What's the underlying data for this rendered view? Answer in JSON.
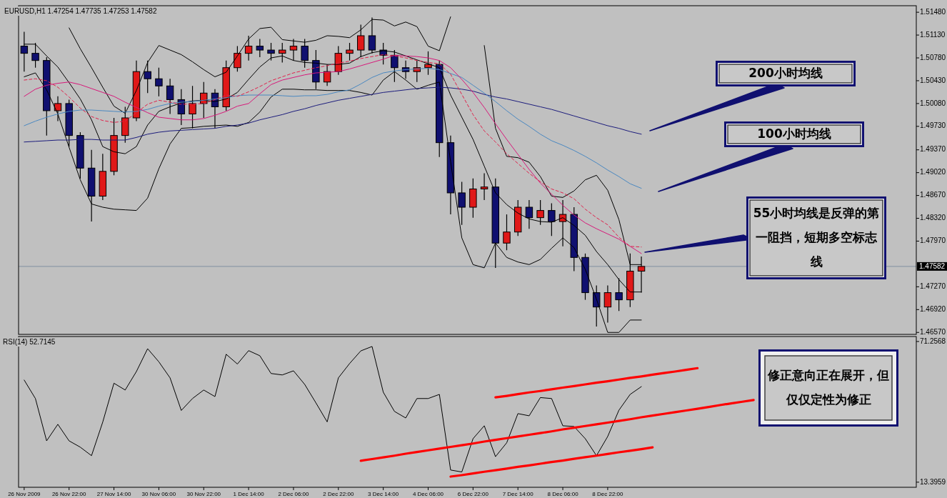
{
  "chart_data": [
    {
      "type": "candlestick",
      "title": "EURUSD,H1  1.47254 1.47735 1.47253 1.47582",
      "categories": [
        null,
        null,
        null,
        null,
        null,
        null,
        null,
        null,
        null,
        null,
        null,
        null,
        null,
        null,
        null,
        null,
        null,
        null,
        null,
        null,
        null,
        null,
        null,
        null,
        null,
        null,
        null,
        null,
        null,
        null,
        null,
        null,
        null,
        null,
        null,
        null,
        null,
        null,
        null,
        null,
        null,
        null,
        null,
        null,
        null,
        null,
        null,
        null,
        null,
        null,
        null,
        null,
        null,
        null,
        null,
        null,
        null,
        null,
        null,
        null,
        null,
        null,
        null,
        null,
        null,
        null,
        null,
        null,
        null,
        null,
        null,
        null,
        null,
        null,
        null,
        null,
        null,
        null,
        null,
        null
      ],
      "ylim": [
        1.4654,
        1.5158
      ],
      "yticks": [
        {
          "value": 1.5148,
          "label": "1.51480"
        },
        {
          "value": 1.5113,
          "label": "1.51130"
        },
        {
          "value": 1.5078,
          "label": "1.50780"
        },
        {
          "value": 1.5043,
          "label": "1.50430"
        },
        {
          "value": 1.5008,
          "label": "1.50080"
        },
        {
          "value": 1.4973,
          "label": "1.49730"
        },
        {
          "value": 1.4937,
          "label": "1.49370"
        },
        {
          "value": 1.4902,
          "label": "1.49020"
        },
        {
          "value": 1.4867,
          "label": "1.48670"
        },
        {
          "value": 1.4832,
          "label": "1.48320"
        },
        {
          "value": 1.4797,
          "label": "1.47970"
        },
        {
          "value": 1.4727,
          "label": "1.47270"
        },
        {
          "value": 1.4692,
          "label": "1.46920"
        },
        {
          "value": 1.4657,
          "label": "1.46570"
        }
      ],
      "ohlc": [
        [
          1.5096,
          1.5118,
          1.5057,
          1.5085
        ],
        [
          1.5085,
          1.5101,
          1.5063,
          1.5074
        ],
        [
          1.5074,
          1.5079,
          1.4959,
          1.4997
        ],
        [
          1.4997,
          1.5019,
          1.4981,
          1.5008
        ],
        [
          1.5008,
          1.5014,
          1.4942,
          1.4959
        ],
        [
          1.4959,
          1.4964,
          1.4893,
          1.4909
        ],
        [
          1.4909,
          1.4937,
          1.4827,
          1.4866
        ],
        [
          1.4866,
          1.4931,
          1.486,
          1.4904
        ],
        [
          1.4904,
          1.4986,
          1.4898,
          1.4959
        ],
        [
          1.4959,
          1.5003,
          1.4948,
          1.4986
        ],
        [
          1.4986,
          1.5074,
          1.4981,
          1.5057
        ],
        [
          1.5057,
          1.5074,
          1.5024,
          1.5046
        ],
        [
          1.5046,
          1.5063,
          1.5019,
          1.5035
        ],
        [
          1.5035,
          1.5046,
          1.4992,
          1.5014
        ],
        [
          1.5014,
          1.503,
          1.4975,
          1.4992
        ],
        [
          1.4992,
          1.5035,
          1.497,
          1.5008
        ],
        [
          1.5008,
          1.5041,
          1.4986,
          1.5024
        ],
        [
          1.5024,
          1.503,
          1.497,
          1.5003
        ],
        [
          1.5003,
          1.5074,
          1.4997,
          1.5063
        ],
        [
          1.5063,
          1.5096,
          1.5057,
          1.5085
        ],
        [
          1.5085,
          1.5112,
          1.5074,
          1.5096
        ],
        [
          1.5096,
          1.5107,
          1.5079,
          1.509
        ],
        [
          1.509,
          1.5101,
          1.5074,
          1.5085
        ],
        [
          1.5085,
          1.5101,
          1.5071,
          1.509
        ],
        [
          1.509,
          1.5107,
          1.5074,
          1.5096
        ],
        [
          1.5096,
          1.5107,
          1.5063,
          1.5074
        ],
        [
          1.5074,
          1.509,
          1.503,
          1.5041
        ],
        [
          1.5041,
          1.5068,
          1.5035,
          1.5057
        ],
        [
          1.5057,
          1.5096,
          1.5052,
          1.5085
        ],
        [
          1.5085,
          1.5101,
          1.5074,
          1.509
        ],
        [
          1.509,
          1.5129,
          1.5079,
          1.5112
        ],
        [
          1.5112,
          1.514,
          1.5085,
          1.509
        ],
        [
          1.509,
          1.5101,
          1.5068,
          1.5082
        ],
        [
          1.5082,
          1.509,
          1.5041,
          1.5063
        ],
        [
          1.5063,
          1.5074,
          1.5046,
          1.5057
        ],
        [
          1.5057,
          1.5074,
          1.5041,
          1.5063
        ],
        [
          1.5063,
          1.5088,
          1.5052,
          1.5068
        ],
        [
          1.5068,
          1.5074,
          1.4926,
          1.4948
        ],
        [
          1.4948,
          1.4959,
          1.4838,
          1.4871
        ],
        [
          1.4871,
          1.4888,
          1.4822,
          1.4849
        ],
        [
          1.4849,
          1.4893,
          1.4833,
          1.4877
        ],
        [
          1.4877,
          1.4901,
          1.486,
          1.488
        ],
        [
          1.488,
          1.4893,
          1.4756,
          1.4794
        ],
        [
          1.4794,
          1.4838,
          1.4783,
          1.4811
        ],
        [
          1.4811,
          1.486,
          1.4805,
          1.4849
        ],
        [
          1.4849,
          1.486,
          1.4816,
          1.4833
        ],
        [
          1.4833,
          1.486,
          1.4822,
          1.4844
        ],
        [
          1.4844,
          1.4855,
          1.4805,
          1.4827
        ],
        [
          1.4827,
          1.486,
          1.4789,
          1.4838
        ],
        [
          1.4838,
          1.4849,
          1.4751,
          1.4772
        ],
        [
          1.4772,
          1.4778,
          1.4707,
          1.4718
        ],
        [
          1.4718,
          1.4729,
          1.4666,
          1.4696
        ],
        [
          1.4696,
          1.4729,
          1.4672,
          1.4718
        ],
        [
          1.4718,
          1.474,
          1.469,
          1.4707
        ],
        [
          1.4707,
          1.4778,
          1.4696,
          1.4751
        ],
        [
          1.4751,
          1.47735,
          1.4718,
          1.47582
        ],
        null,
        null,
        null,
        null,
        null,
        null,
        null,
        null,
        null,
        null,
        null,
        null,
        null,
        null,
        null,
        null,
        null,
        null,
        null,
        null,
        null,
        null,
        null,
        null
      ],
      "series": [
        {
          "type": "line",
          "color": "#000000",
          "values": [
            null,
            null,
            null,
            null,
            1.5124,
            1.5092,
            1.5063,
            1.5033,
            1.5004,
            1.4993,
            1.5028,
            1.5071,
            1.5097,
            1.509,
            1.5083,
            1.5072,
            1.506,
            1.5049,
            1.5056,
            1.5081,
            1.5107,
            1.5123,
            1.5125,
            1.5106,
            1.5104,
            1.5102,
            1.5105,
            1.5112,
            1.5111,
            1.5109,
            1.5121,
            1.5137,
            1.5136,
            1.5127,
            1.5133,
            1.5126,
            1.5096,
            1.5089,
            1.5141,
            null,
            null,
            1.5097,
            1.497,
            1.4927,
            1.4925,
            1.4918,
            1.4896,
            1.4866,
            1.4864,
            1.4874,
            1.4891,
            1.4898,
            1.4875,
            1.483,
            1.4761,
            1.4761,
            null,
            null,
            null,
            null,
            null,
            null,
            null,
            null,
            null,
            null,
            null,
            null,
            null,
            null,
            null,
            null,
            null,
            null,
            null,
            null,
            null,
            null,
            null,
            null
          ]
        },
        {
          "type": "line",
          "color": "#000000",
          "values": [
            1.5099,
            1.5099,
            1.5081,
            1.5064,
            1.504,
            1.5015,
            1.4983,
            1.4942,
            1.4934,
            1.4931,
            1.4942,
            1.4975,
            1.4996,
            1.5003,
            1.5009,
            1.5012,
            1.5013,
            1.5011,
            1.5015,
            1.5025,
            1.5045,
            1.5064,
            1.5078,
            1.5081,
            1.5074,
            1.5071,
            1.507,
            1.5068,
            1.5068,
            1.507,
            1.508,
            1.5086,
            1.5089,
            1.5087,
            1.5081,
            1.5075,
            1.5069,
            1.5063,
            1.5021,
            1.4987,
            1.4953,
            1.4912,
            1.4871,
            1.4853,
            1.484,
            1.4831,
            1.4827,
            1.4826,
            1.4833,
            1.4821,
            1.4806,
            1.4781,
            1.4761,
            1.4738,
            1.4719,
            1.4719,
            null,
            null,
            null,
            null,
            null,
            null,
            null,
            null,
            null,
            null,
            null,
            null,
            null,
            null,
            null,
            null,
            null,
            null,
            null,
            null,
            null,
            null,
            null,
            null
          ]
        },
        {
          "type": "line",
          "color": "#000000",
          "values": [
            1.5049,
            1.5055,
            1.5029,
            1.4992,
            1.4941,
            1.4891,
            1.4854,
            1.4849,
            1.4846,
            1.4845,
            1.4844,
            1.4863,
            1.4908,
            1.4946,
            1.497,
            1.4971,
            1.4973,
            1.4974,
            1.4975,
            1.4973,
            1.4979,
            1.4995,
            1.5018,
            1.503,
            1.503,
            1.5029,
            1.5029,
            1.5028,
            1.5028,
            1.5028,
            1.5025,
            1.5021,
            1.5044,
            1.5057,
            1.5044,
            1.503,
            1.5036,
            1.5041,
            1.4919,
            1.4802,
            1.4761,
            1.4756,
            1.4794,
            1.4772,
            1.4765,
            1.4761,
            1.4769,
            1.4786,
            1.4802,
            1.4787,
            1.4754,
            1.4708,
            1.4657,
            1.4657,
            1.4676,
            1.4676,
            null,
            null,
            null,
            null,
            null,
            null,
            null,
            null,
            null,
            null,
            null,
            null,
            null,
            null,
            null,
            null,
            null,
            null,
            null,
            null,
            null,
            null,
            null,
            null
          ]
        },
        {
          "type": "line",
          "color": "#1c1c7c",
          "values": [
            1.4949,
            1.495,
            1.4951,
            1.4952,
            1.4952,
            1.4953,
            1.4953,
            1.4952,
            1.4952,
            1.4952,
            1.4956,
            1.4961,
            1.4964,
            1.4966,
            1.4967,
            1.4968,
            1.4969,
            1.497,
            1.4973,
            1.4975,
            1.4978,
            1.4983,
            1.4987,
            1.4991,
            1.4996,
            1.5,
            1.5005,
            1.5009,
            1.5013,
            1.5016,
            1.5019,
            1.5022,
            1.5025,
            1.5027,
            1.5029,
            1.5031,
            1.5032,
            1.5033,
            1.5032,
            1.503,
            1.5027,
            1.5022,
            1.5018,
            1.5015,
            1.5011,
            1.5007,
            1.5003,
            1.4999,
            1.4994,
            1.4989,
            1.4984,
            1.4979,
            1.4974,
            1.497,
            1.4965,
            1.4961,
            null,
            null,
            null,
            null,
            null,
            null,
            null,
            null,
            null,
            null,
            null,
            null,
            null,
            null,
            null,
            null,
            null,
            null,
            null,
            null,
            null,
            null,
            null,
            null
          ]
        },
        {
          "type": "line",
          "color": "#4a88c0",
          "values": [
            1.4974,
            1.4981,
            1.4987,
            1.4992,
            1.4996,
            1.4998,
            1.4998,
            1.4997,
            1.4996,
            1.4995,
            1.4996,
            1.4999,
            1.5004,
            1.5008,
            1.501,
            1.5011,
            1.5013,
            1.5015,
            1.5017,
            1.502,
            1.5021,
            1.5021,
            1.5021,
            1.502,
            1.5019,
            1.502,
            1.502,
            1.5022,
            1.5026,
            1.5029,
            1.5038,
            1.5048,
            1.5055,
            1.5058,
            1.506,
            1.5061,
            1.5062,
            1.506,
            1.5054,
            1.5048,
            1.5036,
            1.5024,
            1.5011,
            1.4997,
            1.4984,
            1.4973,
            1.4961,
            1.4951,
            1.4944,
            1.4936,
            1.4927,
            1.4917,
            1.4906,
            1.4896,
            1.4885,
            1.4878,
            null,
            null,
            null,
            null,
            null,
            null,
            null,
            null,
            null,
            null,
            null,
            null,
            null,
            null,
            null,
            null,
            null,
            null,
            null,
            null,
            null,
            null,
            null,
            null
          ]
        },
        {
          "type": "line",
          "color": "#d8187a",
          "values": [
            1.5019,
            1.503,
            1.5036,
            1.5039,
            1.5041,
            1.5037,
            1.5031,
            1.5025,
            1.5019,
            1.501,
            1.5002,
            1.4994,
            1.4987,
            1.4985,
            1.4983,
            1.4983,
            1.4985,
            1.499,
            1.4996,
            1.5004,
            1.5008,
            1.5023,
            1.5037,
            1.5044,
            1.5048,
            1.5052,
            1.5055,
            1.5056,
            1.5057,
            1.5061,
            1.5066,
            1.5071,
            1.5076,
            1.5082,
            1.5081,
            1.508,
            1.5078,
            1.5074,
            1.5063,
            1.5045,
            1.5025,
            1.5002,
            1.4977,
            1.4953,
            1.493,
            1.4907,
            1.4886,
            1.4869,
            1.4852,
            1.4837,
            1.4825,
            1.4816,
            1.4808,
            1.48,
            1.4789,
            1.4778,
            null,
            null,
            null,
            null,
            null,
            null,
            null,
            null,
            null,
            null,
            null,
            null,
            null,
            null,
            null,
            null,
            null,
            null,
            null,
            null,
            null,
            null,
            null,
            null
          ]
        },
        {
          "type": "line",
          "color": "#e0204a",
          "line_style": "dashed",
          "values": [
            1.5044,
            1.5046,
            1.5043,
            1.5033,
            1.5018,
            1.5001,
            1.4988,
            1.4982,
            1.4979,
            1.4981,
            1.4994,
            1.5007,
            1.5013,
            1.501,
            1.5007,
            1.5007,
            1.5008,
            1.5014,
            1.5021,
            1.5019,
            1.5026,
            1.5034,
            1.5043,
            1.5049,
            1.5055,
            1.5059,
            1.5063,
            1.5066,
            1.507,
            1.5073,
            1.5077,
            1.508,
            1.5083,
            1.5081,
            1.5078,
            1.5074,
            1.5071,
            1.5069,
            1.5053,
            1.5022,
            1.4991,
            1.4966,
            1.4949,
            1.4931,
            1.4916,
            1.4901,
            1.4888,
            1.4877,
            1.4871,
            1.4862,
            1.4846,
            1.4833,
            1.4822,
            1.4803,
            1.4789,
            1.4788,
            null,
            null,
            null,
            null,
            null,
            null,
            null,
            null,
            null,
            null,
            null,
            null,
            null,
            null,
            null,
            null,
            null,
            null,
            null,
            null,
            null,
            null,
            null,
            null
          ]
        }
      ],
      "ref_lines": [
        {
          "axis": "y",
          "value": 1.47582,
          "label": "1.47582",
          "color": "#8090a0"
        }
      ],
      "annotations": [
        "200小时均线",
        "100小时均线",
        "55小时均线是反弹的第一阻挡，短期多空标志线"
      ]
    },
    {
      "type": "line",
      "title": "RSI(14) 52.7145",
      "ylim": [
        11.3,
        73.3
      ],
      "yticks": [
        13.3959,
        71.2568
      ],
      "categories": [
        "26 Nov 2009",
        null,
        null,
        null,
        "26 Nov 22:00",
        null,
        null,
        null,
        "27 Nov 14:00",
        null,
        null,
        null,
        "30 Nov 06:00",
        null,
        null,
        null,
        "30 Nov 22:00",
        null,
        null,
        null,
        "1 Dec 14:00",
        null,
        null,
        null,
        "2 Dec 06:00",
        null,
        null,
        null,
        "2 Dec 22:00",
        null,
        null,
        null,
        "3 Dec 14:00",
        null,
        null,
        null,
        "4 Dec 06:00",
        null,
        null,
        null,
        "6 Dec 22:00",
        null,
        null,
        null,
        "7 Dec 14:00",
        null,
        null,
        null,
        "8 Dec 06:00",
        null,
        null,
        null,
        "8 Dec 22:00",
        null,
        null,
        null,
        null,
        null,
        null,
        null,
        null,
        null,
        null,
        null,
        null,
        null,
        null,
        null,
        null,
        null,
        null,
        null,
        null,
        null,
        null,
        null,
        null,
        null,
        null,
        null
      ],
      "series": [
        {
          "type": "line",
          "color": "#000000",
          "values": [
            55.4,
            47.8,
            30.4,
            37.2,
            30.4,
            27.8,
            24.3,
            38.1,
            54.1,
            51.3,
            58.9,
            68.3,
            62.9,
            56.3,
            42.9,
            47.8,
            51.3,
            48.6,
            66.0,
            62.0,
            67.5,
            65.4,
            58.1,
            57.5,
            59.2,
            53.6,
            46.0,
            38.2,
            56.3,
            62.2,
            67.4,
            69.2,
            50.4,
            42.5,
            39.8,
            47.8,
            47.8,
            49.5,
            18.4,
            17.6,
            31.3,
            36.6,
            23.9,
            29.6,
            41.6,
            40.7,
            48.2,
            47.8,
            36.6,
            36.3,
            31.3,
            24.3,
            32.2,
            43.0,
            49.5,
            52.7,
            null,
            null,
            null,
            null,
            null,
            null,
            null,
            null,
            null,
            null,
            null,
            null,
            null,
            null,
            null,
            null,
            null,
            null,
            null,
            null,
            null,
            null,
            null,
            null
          ]
        },
        {
          "type": "line",
          "color": "#ff0000",
          "values": [
            null,
            null,
            null,
            null,
            null,
            null,
            null,
            null,
            null,
            null,
            null,
            null,
            null,
            null,
            null,
            null,
            null,
            null,
            null,
            null,
            null,
            null,
            null,
            null,
            null,
            null,
            null,
            null,
            null,
            null,
            null,
            null,
            null,
            null,
            null,
            null,
            null,
            null,
            null,
            null,
            null,
            null,
            48.3,
            48.9,
            49.6,
            50.3,
            50.9,
            51.6,
            52.3,
            52.9,
            53.6,
            54.3,
            54.9,
            55.6,
            56.3,
            56.9,
            57.6,
            58.3,
            58.9,
            59.6,
            60.3,
            null,
            null,
            null,
            null,
            null,
            null,
            null,
            null,
            null,
            null,
            null,
            null,
            null,
            null,
            null,
            null,
            null,
            null,
            null
          ]
        },
        {
          "type": "line",
          "color": "#ff0000",
          "values": [
            null,
            null,
            null,
            null,
            null,
            null,
            null,
            null,
            null,
            null,
            null,
            null,
            null,
            null,
            null,
            null,
            null,
            null,
            null,
            null,
            null,
            null,
            null,
            null,
            null,
            null,
            null,
            null,
            null,
            null,
            22.2,
            22.9,
            23.6,
            24.3,
            25.1,
            25.8,
            26.5,
            27.2,
            27.9,
            28.6,
            29.3,
            30.1,
            30.8,
            31.5,
            32.2,
            32.9,
            33.6,
            34.3,
            35.1,
            35.8,
            36.5,
            37.2,
            37.9,
            38.6,
            39.3,
            40.1,
            40.8,
            41.5,
            42.2,
            42.9,
            43.6,
            44.3,
            45.1,
            45.8,
            46.5,
            47.2,
            null,
            null,
            null,
            null,
            null,
            null,
            null,
            null,
            null,
            null,
            null,
            null,
            null,
            null
          ]
        },
        {
          "type": "line",
          "color": "#ff0000",
          "values": [
            null,
            null,
            null,
            null,
            null,
            null,
            null,
            null,
            null,
            null,
            null,
            null,
            null,
            null,
            null,
            null,
            null,
            null,
            null,
            null,
            null,
            null,
            null,
            null,
            null,
            null,
            null,
            null,
            null,
            null,
            null,
            null,
            null,
            null,
            null,
            null,
            null,
            null,
            15.7,
            16.3,
            17.0,
            17.7,
            18.3,
            19.0,
            19.7,
            20.3,
            21.0,
            21.7,
            22.3,
            23.0,
            23.7,
            24.3,
            25.0,
            25.7,
            26.3,
            27.0,
            27.7,
            null,
            null,
            null,
            null,
            null,
            null,
            null,
            null,
            null,
            null,
            null,
            null,
            null,
            null,
            null,
            null,
            null,
            null,
            null,
            null,
            null,
            null,
            null
          ]
        }
      ],
      "annotations": [
        "修正意向正在展开，但仅仅定性为修正"
      ]
    }
  ]
}
